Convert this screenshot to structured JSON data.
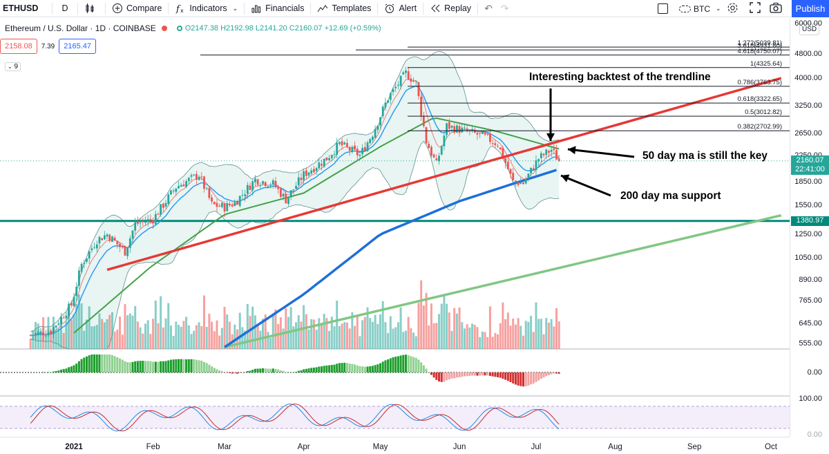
{
  "toolbar": {
    "symbol": "ETHUSD",
    "interval": "D",
    "compare": "Compare",
    "indicators": "Indicators",
    "financials": "Financials",
    "templates": "Templates",
    "alert": "Alert",
    "replay": "Replay",
    "currency": "BTC",
    "publish": "Publish"
  },
  "legend": {
    "title": "Ethereum / U.S. Dollar · 1D · COINBASE",
    "ohlc": "O2147.38 H2192.98 L2141.20 C2160.07 +12.69 (+0.59%)",
    "bid": "2158.08",
    "spread": "7.39",
    "ask": "2165.47",
    "indicator_count": "9"
  },
  "price_scale": {
    "currency": "USD",
    "labels": [
      "6000.00",
      "4800.00",
      "4000.00",
      "3250.00",
      "2650.00",
      "2250.00",
      "1850.00",
      "1550.00",
      "1250.00",
      "1050.00",
      "890.00",
      "765.00",
      "645.00",
      "555.00"
    ],
    "last_price": "2160.07",
    "countdown": "22:41:00",
    "level_tag": "1380.97",
    "macd_zero": "0.00",
    "stoch_top": "100.00",
    "stoch_bottom": "0.00"
  },
  "time_axis": [
    "2021",
    "Feb",
    "Mar",
    "Apr",
    "May",
    "Jun",
    "Jul",
    "Aug",
    "Sep",
    "Oct"
  ],
  "fib_levels": [
    {
      "ratio": "1.272",
      "value": "5039.81",
      "label": "1.272(5039.81)"
    },
    {
      "ratio": "3.618",
      "value": "4931.80",
      "label": "3.618(4931.80)"
    },
    {
      "ratio": "4.618",
      "value": "4750.07",
      "label": "4.618(4750.07)"
    },
    {
      "ratio": "1",
      "value": "4325.64",
      "label": "1(4325.64)"
    },
    {
      "ratio": "0.786",
      "value": "3763.75",
      "label": "0.786(3763.75)"
    },
    {
      "ratio": "0.618",
      "value": "3322.65",
      "label": "0.618(3322.65)"
    },
    {
      "ratio": "0.5",
      "value": "3012.82",
      "label": "0.5(3012.82)"
    },
    {
      "ratio": "0.382",
      "value": "2702.99",
      "label": "0.382(2702.99)"
    }
  ],
  "annotations": {
    "backtest": "Interesting backtest of the trendline",
    "ma50": "50 day ma is still the key",
    "ma200": "200 day ma support"
  },
  "colors": {
    "up": "#26a69a",
    "down": "#ef5350",
    "ma50": "#43a047",
    "ma200": "#1e6fd9",
    "ma20": "#2196f3",
    "trendline": "#e53935",
    "support_line": "#81c784",
    "horizontal_level": "#00897b",
    "bollinger_fill": "#e8f5f3",
    "accent": "#2962ff"
  },
  "chart_data": {
    "type": "candlestick",
    "symbol": "ETHUSD",
    "exchange": "COINBASE",
    "interval": "1D",
    "y_scale": "log",
    "ylim": [
      540,
      6000
    ],
    "x_range": [
      "2020-12-15",
      "2021-10-05"
    ],
    "price_path": [
      {
        "date": "2020-12-15",
        "close": 590
      },
      {
        "date": "2020-12-23",
        "close": 610
      },
      {
        "date": "2020-12-31",
        "close": 740
      },
      {
        "date": "2021-01-04",
        "close": 1000
      },
      {
        "date": "2021-01-10",
        "close": 1200
      },
      {
        "date": "2021-01-14",
        "close": 1250
      },
      {
        "date": "2021-01-21",
        "close": 1100
      },
      {
        "date": "2021-01-25",
        "close": 1350
      },
      {
        "date": "2021-02-01",
        "close": 1400
      },
      {
        "date": "2021-02-10",
        "close": 1780
      },
      {
        "date": "2021-02-19",
        "close": 1950
      },
      {
        "date": "2021-02-24",
        "close": 1560
      },
      {
        "date": "2021-03-01",
        "close": 1530
      },
      {
        "date": "2021-03-05",
        "close": 1580
      },
      {
        "date": "2021-03-13",
        "close": 1880
      },
      {
        "date": "2021-03-20",
        "close": 1820
      },
      {
        "date": "2021-03-25",
        "close": 1620
      },
      {
        "date": "2021-04-01",
        "close": 1950
      },
      {
        "date": "2021-04-10",
        "close": 2200
      },
      {
        "date": "2021-04-15",
        "close": 2450
      },
      {
        "date": "2021-04-23",
        "close": 2250
      },
      {
        "date": "2021-04-28",
        "close": 2650
      },
      {
        "date": "2021-05-04",
        "close": 3450
      },
      {
        "date": "2021-05-11",
        "close": 4150
      },
      {
        "date": "2021-05-15",
        "close": 3850
      },
      {
        "date": "2021-05-19",
        "close": 2500
      },
      {
        "date": "2021-05-23",
        "close": 2100
      },
      {
        "date": "2021-05-27",
        "close": 2800
      },
      {
        "date": "2021-06-03",
        "close": 2700
      },
      {
        "date": "2021-06-10",
        "close": 2600
      },
      {
        "date": "2021-06-16",
        "close": 2450
      },
      {
        "date": "2021-06-22",
        "close": 1850
      },
      {
        "date": "2021-06-26",
        "close": 1830
      },
      {
        "date": "2021-07-02",
        "close": 2200
      },
      {
        "date": "2021-07-07",
        "close": 2350
      },
      {
        "date": "2021-07-10",
        "close": 2160
      }
    ],
    "last": {
      "open": 2147.38,
      "high": 2192.98,
      "low": 2141.2,
      "close": 2160.07,
      "change": 12.69,
      "change_pct": 0.59
    },
    "horizontal_level": 1380.97,
    "trendline": {
      "from": {
        "date": "2021-01-14",
        "price": 960
      },
      "to": {
        "date": "2021-10-05",
        "price": 4000
      }
    },
    "support_line": {
      "from": {
        "date": "2021-03-01",
        "price": 540
      },
      "to": {
        "date": "2021-10-05",
        "price": 1440
      }
    },
    "ma50_path": [
      {
        "date": "2021-01-01",
        "price": 600
      },
      {
        "date": "2021-01-31",
        "price": 980
      },
      {
        "date": "2021-03-01",
        "price": 1450
      },
      {
        "date": "2021-04-01",
        "price": 1700
      },
      {
        "date": "2021-05-01",
        "price": 2400
      },
      {
        "date": "2021-05-22",
        "price": 2980
      },
      {
        "date": "2021-06-15",
        "price": 2700
      },
      {
        "date": "2021-07-10",
        "price": 2360
      }
    ],
    "ma200_path": [
      {
        "date": "2021-03-01",
        "price": 540
      },
      {
        "date": "2021-04-01",
        "price": 800
      },
      {
        "date": "2021-05-01",
        "price": 1250
      },
      {
        "date": "2021-06-01",
        "price": 1600
      },
      {
        "date": "2021-06-20",
        "price": 1800
      },
      {
        "date": "2021-07-10",
        "price": 2030
      }
    ],
    "indicators": [
      "Bollinger Bands",
      "MA 20",
      "MA 50",
      "MA 200",
      "Volume",
      "MACD histogram",
      "Stochastic RSI"
    ]
  }
}
